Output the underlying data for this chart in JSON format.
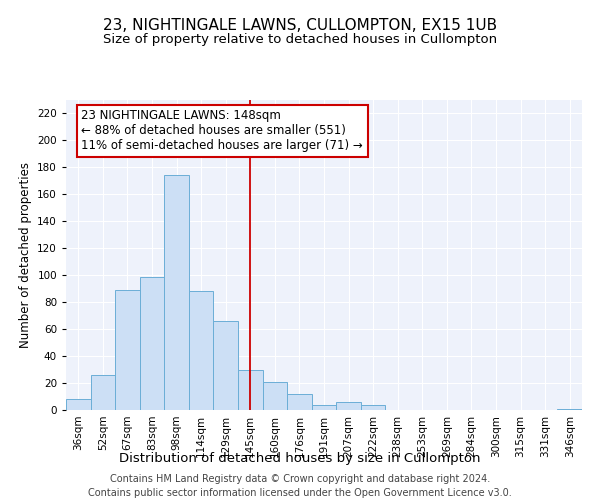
{
  "title": "23, NIGHTINGALE LAWNS, CULLOMPTON, EX15 1UB",
  "subtitle": "Size of property relative to detached houses in Cullompton",
  "xlabel": "Distribution of detached houses by size in Cullompton",
  "ylabel": "Number of detached properties",
  "bar_labels": [
    "36sqm",
    "52sqm",
    "67sqm",
    "83sqm",
    "98sqm",
    "114sqm",
    "129sqm",
    "145sqm",
    "160sqm",
    "176sqm",
    "191sqm",
    "207sqm",
    "222sqm",
    "238sqm",
    "253sqm",
    "269sqm",
    "284sqm",
    "300sqm",
    "315sqm",
    "331sqm",
    "346sqm"
  ],
  "bar_values": [
    8,
    26,
    89,
    99,
    174,
    88,
    66,
    30,
    21,
    12,
    4,
    6,
    4,
    0,
    0,
    0,
    0,
    0,
    0,
    0,
    1
  ],
  "bar_color": "#ccdff5",
  "bar_edge_color": "#6baed6",
  "vline_x": 7,
  "vline_color": "#cc0000",
  "ylim": [
    0,
    230
  ],
  "yticks": [
    0,
    20,
    40,
    60,
    80,
    100,
    120,
    140,
    160,
    180,
    200,
    220
  ],
  "annotation_lines": [
    "23 NIGHTINGALE LAWNS: 148sqm",
    "← 88% of detached houses are smaller (551)",
    "11% of semi-detached houses are larger (71) →"
  ],
  "annotation_box_color": "#ffffff",
  "annotation_box_edge": "#cc0000",
  "footer_line1": "Contains HM Land Registry data © Crown copyright and database right 2024.",
  "footer_line2": "Contains public sector information licensed under the Open Government Licence v3.0.",
  "bg_color": "#eef2fb",
  "title_fontsize": 11,
  "subtitle_fontsize": 9.5,
  "xlabel_fontsize": 9.5,
  "ylabel_fontsize": 8.5,
  "tick_fontsize": 7.5,
  "footer_fontsize": 7,
  "annotation_fontsize": 8.5
}
